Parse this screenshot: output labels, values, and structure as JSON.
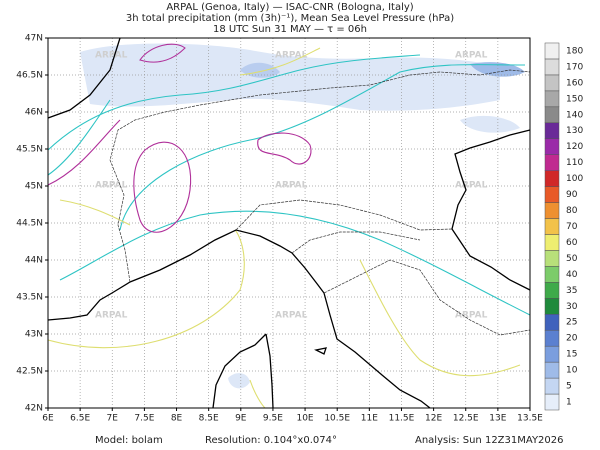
{
  "header": {
    "line1": "ARPAL (Genoa, Italy)  —  ISAC-CNR (Bologna, Italy)",
    "line2": "3h total precipitation (mm (3h)⁻¹), Mean Sea Level Pressure (hPa)",
    "line3": "18 UTC Sun 31 MAY  —  τ = 06h"
  },
  "map": {
    "xlim": [
      6,
      13.5
    ],
    "ylim": [
      42,
      47
    ],
    "xticks": [
      {
        "value": 6,
        "label": "6E"
      },
      {
        "value": 6.5,
        "label": "6.5E"
      },
      {
        "value": 7,
        "label": "7E"
      },
      {
        "value": 7.5,
        "label": "7.5E"
      },
      {
        "value": 8,
        "label": "8E"
      },
      {
        "value": 8.5,
        "label": "8.5E"
      },
      {
        "value": 9,
        "label": "9E"
      },
      {
        "value": 9.5,
        "label": "9.5E"
      },
      {
        "value": 10,
        "label": "10E"
      },
      {
        "value": 10.5,
        "label": "10.5E"
      },
      {
        "value": 11,
        "label": "11E"
      },
      {
        "value": 11.5,
        "label": "11.5E"
      },
      {
        "value": 12,
        "label": "12E"
      },
      {
        "value": 12.5,
        "label": "12.5E"
      },
      {
        "value": 13,
        "label": "13E"
      },
      {
        "value": 13.5,
        "label": "13.5E"
      }
    ],
    "yticks": [
      {
        "value": 42,
        "label": "42N"
      },
      {
        "value": 42.5,
        "label": "42.5N"
      },
      {
        "value": 43,
        "label": "43N"
      },
      {
        "value": 43.5,
        "label": "43.5N"
      },
      {
        "value": 44,
        "label": "44N"
      },
      {
        "value": 44.5,
        "label": "44.5N"
      },
      {
        "value": 45,
        "label": "45N"
      },
      {
        "value": 45.5,
        "label": "45.5N"
      },
      {
        "value": 46,
        "label": "46N"
      },
      {
        "value": 46.5,
        "label": "46.5N"
      },
      {
        "value": 47,
        "label": "47N"
      }
    ],
    "grid": true,
    "watermark": "ARPAL"
  },
  "colorbar": {
    "levels": [
      1,
      5,
      10,
      15,
      20,
      25,
      30,
      35,
      40,
      50,
      60,
      70,
      80,
      90,
      100,
      110,
      120,
      130,
      140,
      150,
      160,
      170,
      180
    ],
    "colors": [
      "#e6eefa",
      "#c4d6f2",
      "#9fbbe8",
      "#7b9ede",
      "#5b80d0",
      "#3f62bc",
      "#1f8a3c",
      "#3faa4a",
      "#7ccc6a",
      "#b8e07a",
      "#eeee70",
      "#f2c24a",
      "#ee9030",
      "#e85a28",
      "#d02828",
      "#c02a90",
      "#9a2aa8",
      "#6a2a98",
      "#8a8a8a",
      "#a8a8a8",
      "#c4c4c4",
      "#dcdcdc",
      "#f0f0f0"
    ]
  },
  "footer": {
    "model": "Model: bolam",
    "resolution": "Resolution: 0.104°x0.074°",
    "analysis": "Analysis: Sun 12Z31MAY2026"
  }
}
